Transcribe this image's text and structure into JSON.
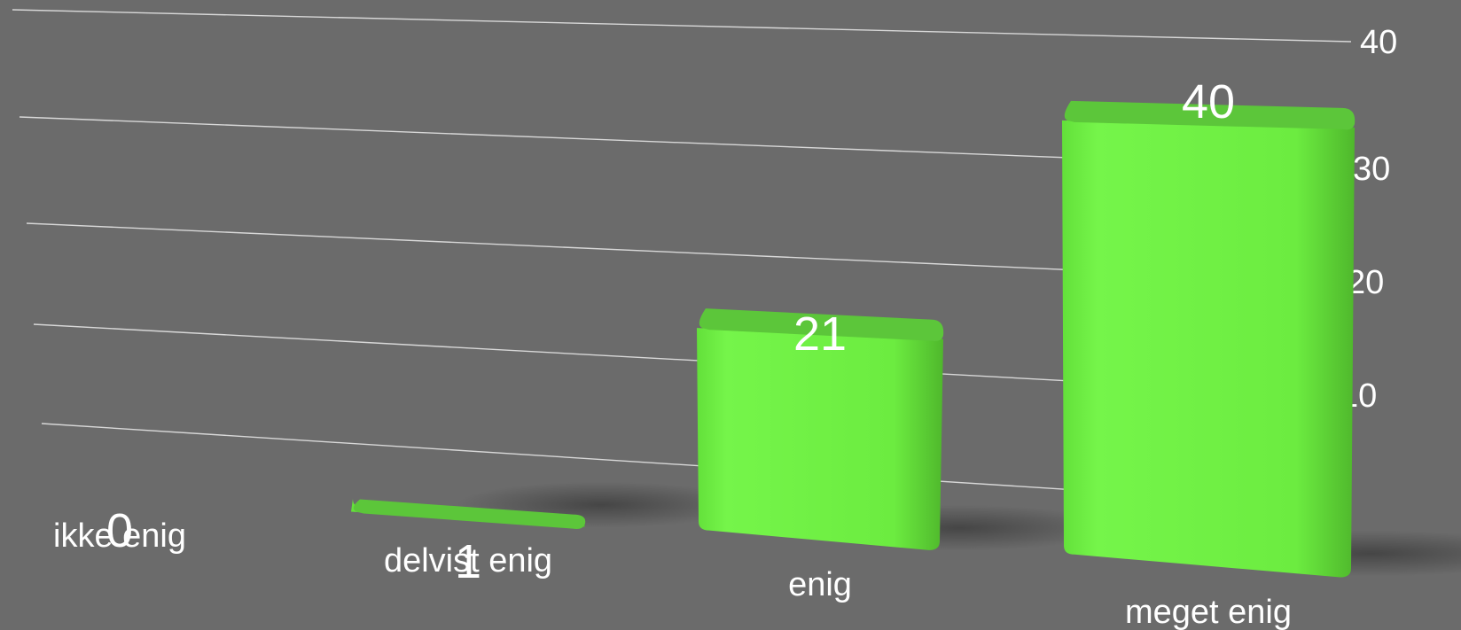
{
  "chart_data": {
    "type": "bar",
    "categories": [
      "ikke enig",
      "delvist enig",
      "enig",
      "meget enig"
    ],
    "values": [
      0,
      1,
      21,
      40
    ],
    "data_labels": [
      "0",
      "1",
      "21",
      "40"
    ],
    "ylim": [
      0,
      40
    ],
    "yticks": [
      0,
      10,
      20,
      30,
      40
    ],
    "grid": true,
    "three_d": true,
    "bar_color": "#6ef042",
    "bar_top_color": "#5cc63a",
    "background": "#6b6b6b",
    "grid_color": "#d8d8d8"
  }
}
